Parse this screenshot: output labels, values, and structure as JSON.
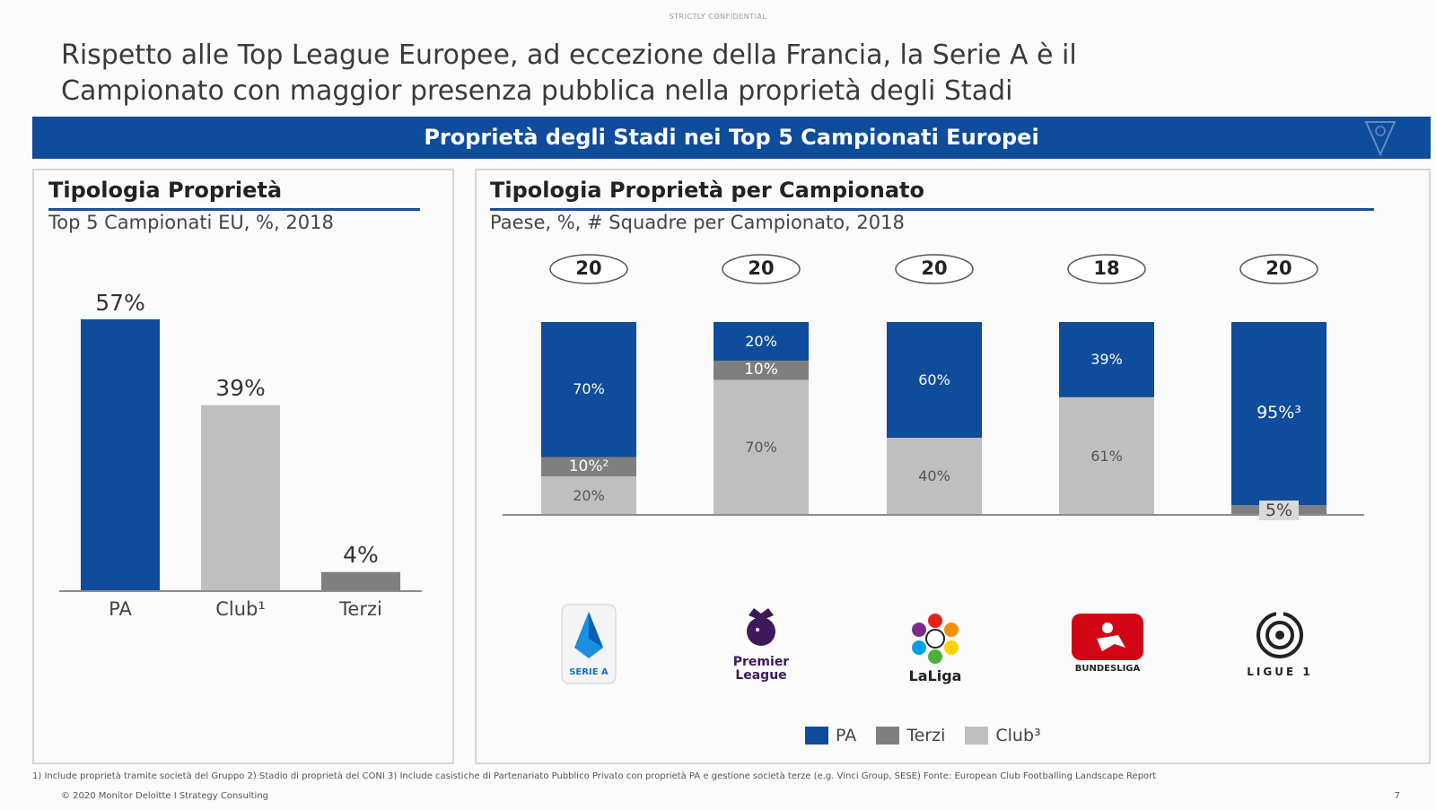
{
  "header": {
    "confidential": "STRICTLY CONFIDENTIAL",
    "headline_line1": "Rispetto alle Top League Europee, ad eccezione della Francia, la Serie A è il",
    "headline_line2": "Campionato con maggior presenza pubblica nella proprietà degli Stadi",
    "banner": "Proprietà degli Stadi nei Top 5 Campionati Europei"
  },
  "left_panel": {
    "title": "Tipologia Proprietà",
    "subtitle": "Top 5 Campionati EU, %, 2018"
  },
  "right_panel": {
    "title": "Tipologia Proprietà per Campionato",
    "subtitle": "Paese, %, # Squadre per Campionato, 2018"
  },
  "colors": {
    "PA": "#0f4c9c",
    "Terzi": "#7f7f7f",
    "Club": "#bfbfbf",
    "banner": "#0f4c9c"
  },
  "chart_data": [
    {
      "type": "bar",
      "title": "Tipologia Proprietà",
      "subtitle": "Top 5 Campionati EU, %, 2018",
      "categories": [
        "PA",
        "Club¹",
        "Terzi"
      ],
      "values": [
        57,
        39,
        4
      ],
      "value_labels": [
        "57%",
        "39%",
        "4%"
      ],
      "colors": [
        "#0f4c9c",
        "#bfbfbf",
        "#7f7f7f"
      ],
      "ylim": [
        0,
        57
      ],
      "grid": false
    },
    {
      "type": "bar",
      "stacked": true,
      "percent": true,
      "title": "Tipologia Proprietà per Campionato",
      "subtitle": "Paese, %, # Squadre per Campionato, 2018",
      "categories": [
        "Serie A",
        "Premier League",
        "LaLiga",
        "Bundesliga",
        "Ligue 1"
      ],
      "team_counts": [
        "20",
        "20",
        "20",
        "18",
        "20"
      ],
      "series": [
        {
          "name": "Club³",
          "color": "#bfbfbf",
          "values": [
            20,
            70,
            40,
            61,
            0
          ],
          "labels": [
            "20%",
            "70%",
            "40%",
            "61%",
            ""
          ]
        },
        {
          "name": "Terzi",
          "color": "#7f7f7f",
          "values": [
            10,
            10,
            0,
            0,
            5
          ],
          "labels": [
            "10%²",
            "10%",
            "",
            "",
            "5%"
          ]
        },
        {
          "name": "PA",
          "color": "#0f4c9c",
          "values": [
            70,
            20,
            60,
            39,
            95
          ],
          "labels": [
            "70%",
            "20%",
            "60%",
            "39%",
            "95%³"
          ]
        }
      ],
      "legend": [
        "PA",
        "Terzi",
        "Club³"
      ],
      "legend_position": "bottom",
      "ylim": [
        0,
        100
      ],
      "grid": false
    }
  ],
  "logos": {
    "seriea": "SERIE A",
    "premier1": "Premier",
    "premier2": "League",
    "laliga": "LaLiga",
    "bundesliga": "BUNDESLIGA",
    "ligue1": "LIGUE 1"
  },
  "footer": {
    "footnotes": "1) Include proprietà tramite società del Gruppo    2) Stadio di proprietà del CONI    3)  Include casistiche di Partenariato Pubblico Privato con proprietà PA e gestione società terze (e.g. Vinci Group, SESE) Fonte: European Club Footballing Landscape Report",
    "copyright": "© 2020 Monitor Deloitte I Strategy Consulting",
    "page": "7"
  }
}
